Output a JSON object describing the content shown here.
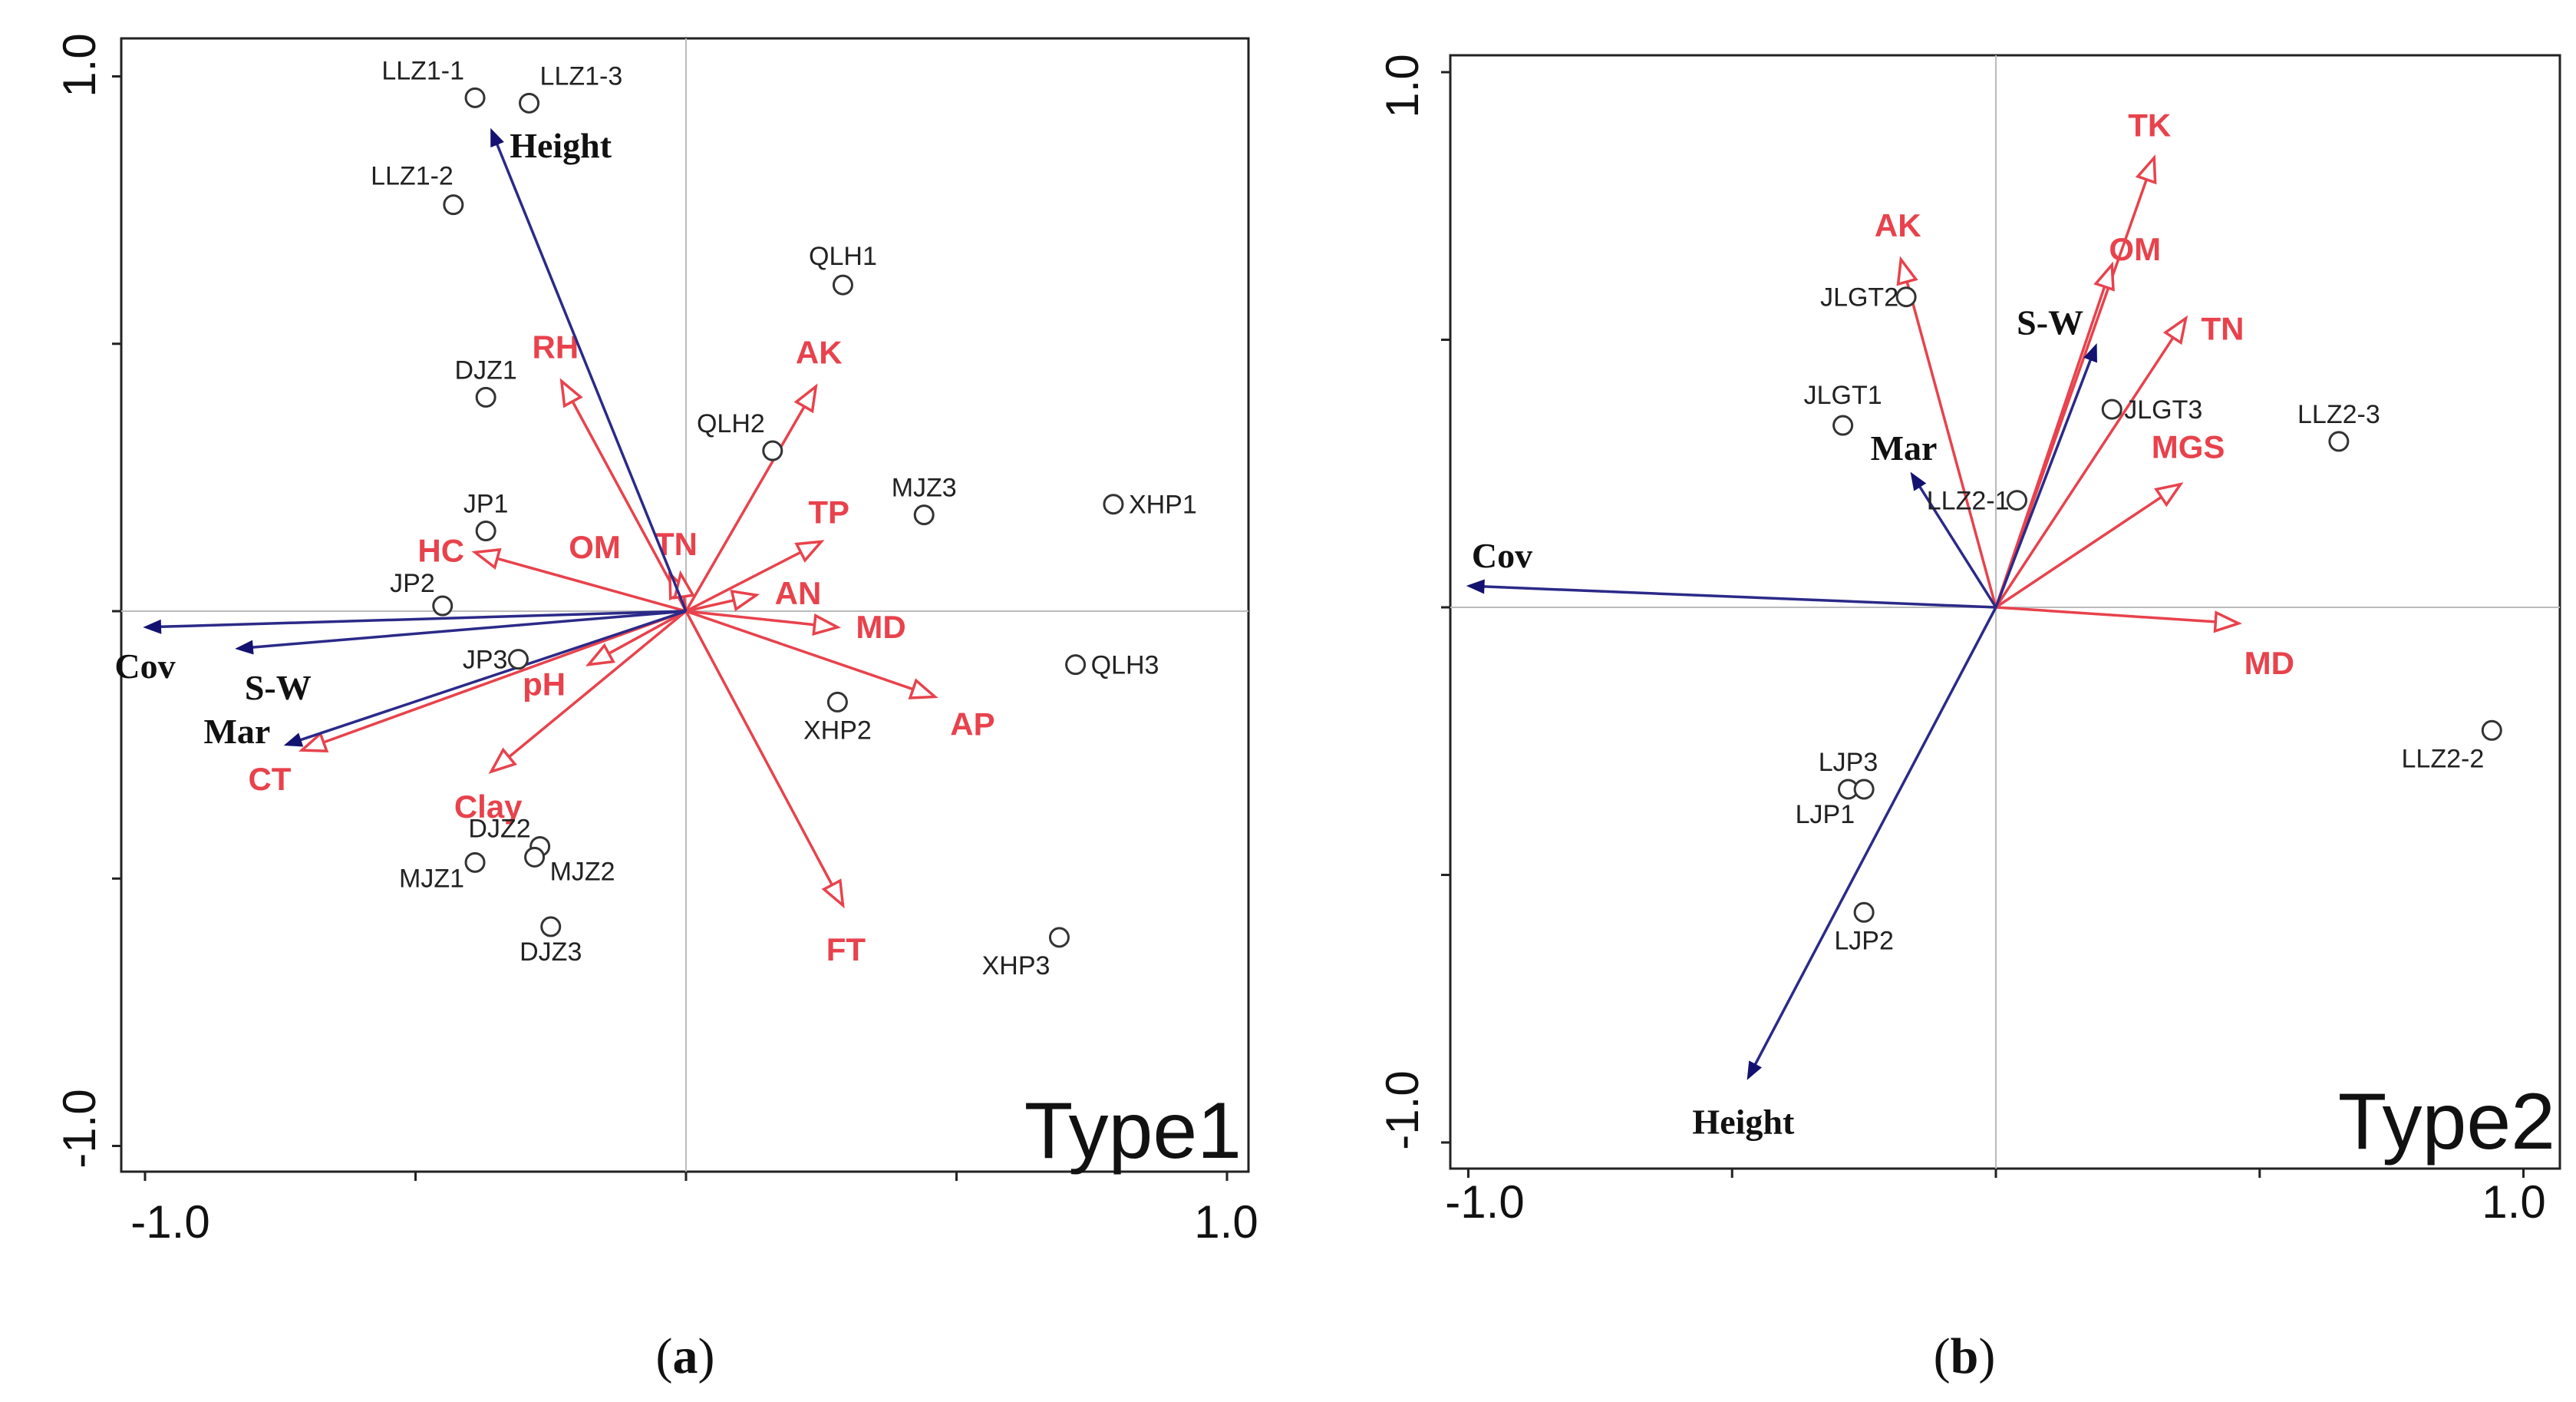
{
  "chart_data": [
    {
      "type": "scatter",
      "subtype": "rda-biplot",
      "panel_caption": "a",
      "type_label": "Type1",
      "xlim": [
        -1.0,
        1.0
      ],
      "ylim": [
        -1.0,
        1.0
      ],
      "x_ticks": [
        "-1.0",
        "1.0"
      ],
      "y_ticks": [
        "1.0",
        "-1.0"
      ],
      "sites": [
        {
          "name": "LLZ1-1",
          "x": -0.39,
          "y": 0.96
        },
        {
          "name": "LLZ1-3",
          "x": -0.29,
          "y": 0.95
        },
        {
          "name": "LLZ1-2",
          "x": -0.43,
          "y": 0.76
        },
        {
          "name": "QLH1",
          "x": 0.29,
          "y": 0.61
        },
        {
          "name": "DJZ1",
          "x": -0.37,
          "y": 0.4
        },
        {
          "name": "QLH2",
          "x": 0.16,
          "y": 0.3
        },
        {
          "name": "MJZ3",
          "x": 0.44,
          "y": 0.18
        },
        {
          "name": "XHP1",
          "x": 0.79,
          "y": 0.2
        },
        {
          "name": "JP1",
          "x": -0.37,
          "y": 0.15
        },
        {
          "name": "JP2",
          "x": -0.45,
          "y": 0.01
        },
        {
          "name": "JP3",
          "x": -0.31,
          "y": -0.09
        },
        {
          "name": "QLH3",
          "x": 0.72,
          "y": -0.1
        },
        {
          "name": "XHP2",
          "x": 0.28,
          "y": -0.17
        },
        {
          "name": "DJZ2",
          "x": -0.27,
          "y": -0.44
        },
        {
          "name": "MJZ2",
          "x": -0.28,
          "y": -0.46
        },
        {
          "name": "MJZ1",
          "x": -0.39,
          "y": -0.47
        },
        {
          "name": "DJZ3",
          "x": -0.25,
          "y": -0.59
        },
        {
          "name": "XHP3",
          "x": 0.69,
          "y": -0.61
        }
      ],
      "env_vectors": [
        {
          "name": "RH",
          "x": -0.23,
          "y": 0.43
        },
        {
          "name": "AK",
          "x": 0.24,
          "y": 0.42
        },
        {
          "name": "TP",
          "x": 0.25,
          "y": 0.13
        },
        {
          "name": "AN",
          "x": 0.13,
          "y": 0.03
        },
        {
          "name": "OM",
          "x": -0.03,
          "y": 0.07
        },
        {
          "name": "TN",
          "x": -0.01,
          "y": 0.07
        },
        {
          "name": "HC",
          "x": -0.39,
          "y": 0.11
        },
        {
          "name": "MD",
          "x": 0.28,
          "y": -0.03
        },
        {
          "name": "AP",
          "x": 0.46,
          "y": -0.16
        },
        {
          "name": "pH",
          "x": -0.18,
          "y": -0.1
        },
        {
          "name": "Clay",
          "x": -0.36,
          "y": -0.3
        },
        {
          "name": "CT",
          "x": -0.71,
          "y": -0.26
        },
        {
          "name": "FT",
          "x": 0.29,
          "y": -0.55
        }
      ],
      "species_vectors": [
        {
          "name": "Height",
          "x": -0.36,
          "y": 0.9
        },
        {
          "name": "Cov",
          "x": -1.0,
          "y": -0.03
        },
        {
          "name": "S-W",
          "x": -0.83,
          "y": -0.07
        },
        {
          "name": "Mar",
          "x": -0.74,
          "y": -0.25
        }
      ]
    },
    {
      "type": "scatter",
      "subtype": "rda-biplot",
      "panel_caption": "b",
      "type_label": "Type2",
      "xlim": [
        -1.0,
        1.0
      ],
      "ylim": [
        -1.0,
        1.0
      ],
      "x_ticks": [
        "-1.0",
        "1.0"
      ],
      "y_ticks": [
        "1.0",
        "-1.0"
      ],
      "sites": [
        {
          "name": "JLGT2",
          "x": -0.17,
          "y": 0.58
        },
        {
          "name": "JLGT1",
          "x": -0.29,
          "y": 0.34
        },
        {
          "name": "JLGT3",
          "x": 0.22,
          "y": 0.37
        },
        {
          "name": "LLZ2-3",
          "x": 0.65,
          "y": 0.31
        },
        {
          "name": "LLZ2-1",
          "x": 0.04,
          "y": 0.2
        },
        {
          "name": "LLZ2-2",
          "x": 0.94,
          "y": -0.23
        },
        {
          "name": "LJP3",
          "x": -0.28,
          "y": -0.34
        },
        {
          "name": "LJP1",
          "x": -0.25,
          "y": -0.34
        },
        {
          "name": "LJP2",
          "x": -0.25,
          "y": -0.57
        }
      ],
      "env_vectors": [
        {
          "name": "AK",
          "x": -0.18,
          "y": 0.65
        },
        {
          "name": "TK",
          "x": 0.3,
          "y": 0.84
        },
        {
          "name": "OM",
          "x": 0.22,
          "y": 0.64
        },
        {
          "name": "TN",
          "x": 0.36,
          "y": 0.54
        },
        {
          "name": "MGS",
          "x": 0.35,
          "y": 0.23
        },
        {
          "name": "MD",
          "x": 0.46,
          "y": -0.03
        }
      ],
      "species_vectors": [
        {
          "name": "S-W",
          "x": 0.19,
          "y": 0.49
        },
        {
          "name": "Mar",
          "x": -0.16,
          "y": 0.25
        },
        {
          "name": "Cov",
          "x": -1.0,
          "y": 0.04
        },
        {
          "name": "Height",
          "x": -0.47,
          "y": -0.88
        }
      ]
    }
  ],
  "colors": {
    "env": "#e8424c",
    "species": "#131270",
    "axis": "#222222",
    "zero_line": "#bbbbbb"
  }
}
